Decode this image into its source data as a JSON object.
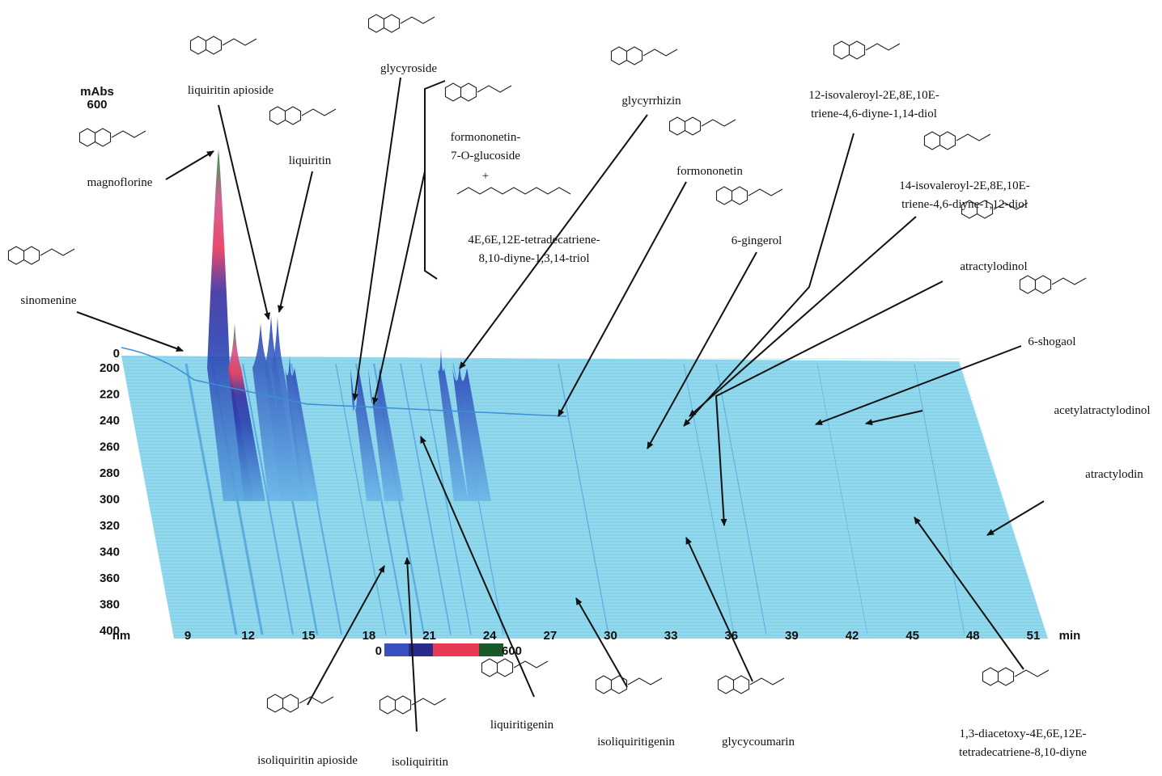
{
  "axes": {
    "absorbance_label": "mAbs",
    "absorbance_ticks": [
      0,
      600
    ],
    "wavelength_label": "nm",
    "wavelength_ticks": [
      200,
      220,
      240,
      260,
      280,
      300,
      320,
      340,
      360,
      380,
      400
    ],
    "time_label": "min",
    "time_ticks": [
      9,
      12,
      15,
      18,
      21,
      24,
      27,
      30,
      33,
      36,
      39,
      42,
      45,
      48,
      51
    ]
  },
  "color_scale": {
    "min": 0,
    "max": 600
  },
  "plus": "+",
  "compounds": [
    {
      "lines": [
        "magnoflorine"
      ]
    },
    {
      "lines": [
        "liquiritin apioside"
      ]
    },
    {
      "lines": [
        "liquiritin"
      ]
    },
    {
      "lines": [
        "glycyroside"
      ]
    },
    {
      "lines": [
        "formononetin-",
        "7-O-glucoside"
      ]
    },
    {
      "lines": [
        "4E,6E,12E-tetradecatriene-",
        "8,10-diyne-1,3,14-triol"
      ]
    },
    {
      "lines": [
        "glycyrrhizin"
      ]
    },
    {
      "lines": [
        "formononetin"
      ]
    },
    {
      "lines": [
        "6-gingerol"
      ]
    },
    {
      "lines": [
        "12-isovaleroyl-2E,8E,10E-",
        "triene-4,6-diyne-1,14-diol"
      ]
    },
    {
      "lines": [
        "14-isovaleroyl-2E,8E,10E-",
        "triene-4,6-diyne-1,12-diol"
      ]
    },
    {
      "lines": [
        "atractylodinol"
      ]
    },
    {
      "lines": [
        "6-shogaol"
      ]
    },
    {
      "lines": [
        "acetylatractylodinol"
      ]
    },
    {
      "lines": [
        "atractylodin"
      ]
    },
    {
      "lines": [
        "1,3-diacetoxy-4E,6E,12E-",
        "tetradecatriene-8,10-diyne"
      ]
    },
    {
      "lines": [
        "glycycoumarin"
      ]
    },
    {
      "lines": [
        "isoliquiritigenin"
      ]
    },
    {
      "lines": [
        "liquiritigenin"
      ]
    },
    {
      "lines": [
        "isoliquiritin"
      ]
    },
    {
      "lines": [
        "isoliquiritin apioside"
      ]
    },
    {
      "lines": [
        "sinomenine"
      ]
    }
  ]
}
